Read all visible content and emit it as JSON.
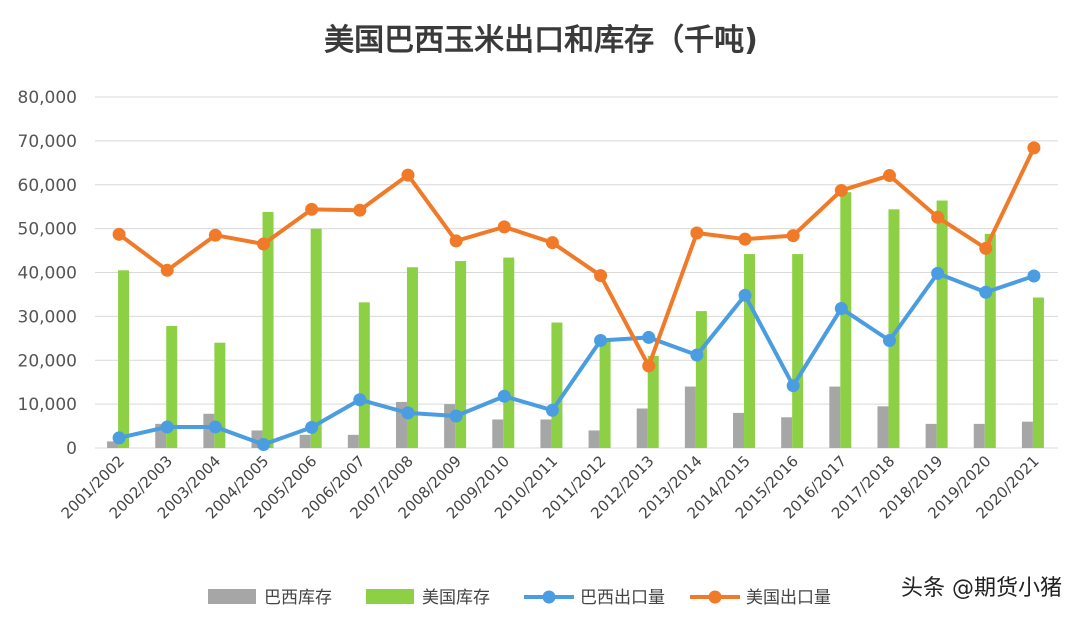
{
  "chart_data": {
    "type": "bar",
    "title": "美国巴西玉米出口和库存（千吨)",
    "xlabel": "",
    "ylabel": "",
    "ylim": [
      0,
      80000
    ],
    "yticks": [
      0,
      10000,
      20000,
      30000,
      40000,
      50000,
      60000,
      70000,
      80000
    ],
    "ytick_labels": [
      "0",
      "10,000",
      "20,000",
      "30,000",
      "40,000",
      "50,000",
      "60,000",
      "70,000",
      "80,000"
    ],
    "grid": true,
    "legend_position": "bottom",
    "categories": [
      "2001/2002",
      "2002/2003",
      "2003/2004",
      "2004/2005",
      "2005/2006",
      "2006/2007",
      "2007/2008",
      "2008/2009",
      "2009/2010",
      "2010/2011",
      "2011/2012",
      "2012/2013",
      "2013/2014",
      "2014/2015",
      "2015/2016",
      "2016/2017",
      "2017/2018",
      "2018/2019",
      "2019/2020",
      "2020/2021"
    ],
    "series": [
      {
        "name": "巴西库存",
        "kind": "bar",
        "color": "#a6a6a6",
        "values": [
          1500,
          5500,
          7800,
          4000,
          3000,
          3000,
          10500,
          10000,
          6500,
          6500,
          4000,
          9000,
          14000,
          8000,
          7000,
          14000,
          9500,
          5500,
          5500,
          6000
        ]
      },
      {
        "name": "美国库存",
        "kind": "bar",
        "color": "#8dd045",
        "values": [
          40500,
          27800,
          24000,
          53800,
          50000,
          33200,
          41200,
          42600,
          43400,
          28600,
          25000,
          21000,
          31200,
          44200,
          44200,
          58300,
          54400,
          56400,
          48800,
          34300
        ]
      },
      {
        "name": "巴西出口量",
        "kind": "line",
        "color": "#4a9de0",
        "values": [
          2300,
          4800,
          4800,
          800,
          4700,
          11000,
          8000,
          7300,
          11800,
          8600,
          24500,
          25200,
          21200,
          34800,
          14200,
          31800,
          24500,
          39800,
          35500,
          39200
        ]
      },
      {
        "name": "美国出口量",
        "kind": "line",
        "color": "#f07a28",
        "values": [
          48700,
          40500,
          48500,
          46500,
          54400,
          54200,
          62200,
          47200,
          50400,
          46800,
          39300,
          18700,
          49000,
          47600,
          48400,
          58700,
          62100,
          52600,
          45500,
          68400
        ]
      }
    ]
  },
  "watermark": "头条 @期货小猪"
}
